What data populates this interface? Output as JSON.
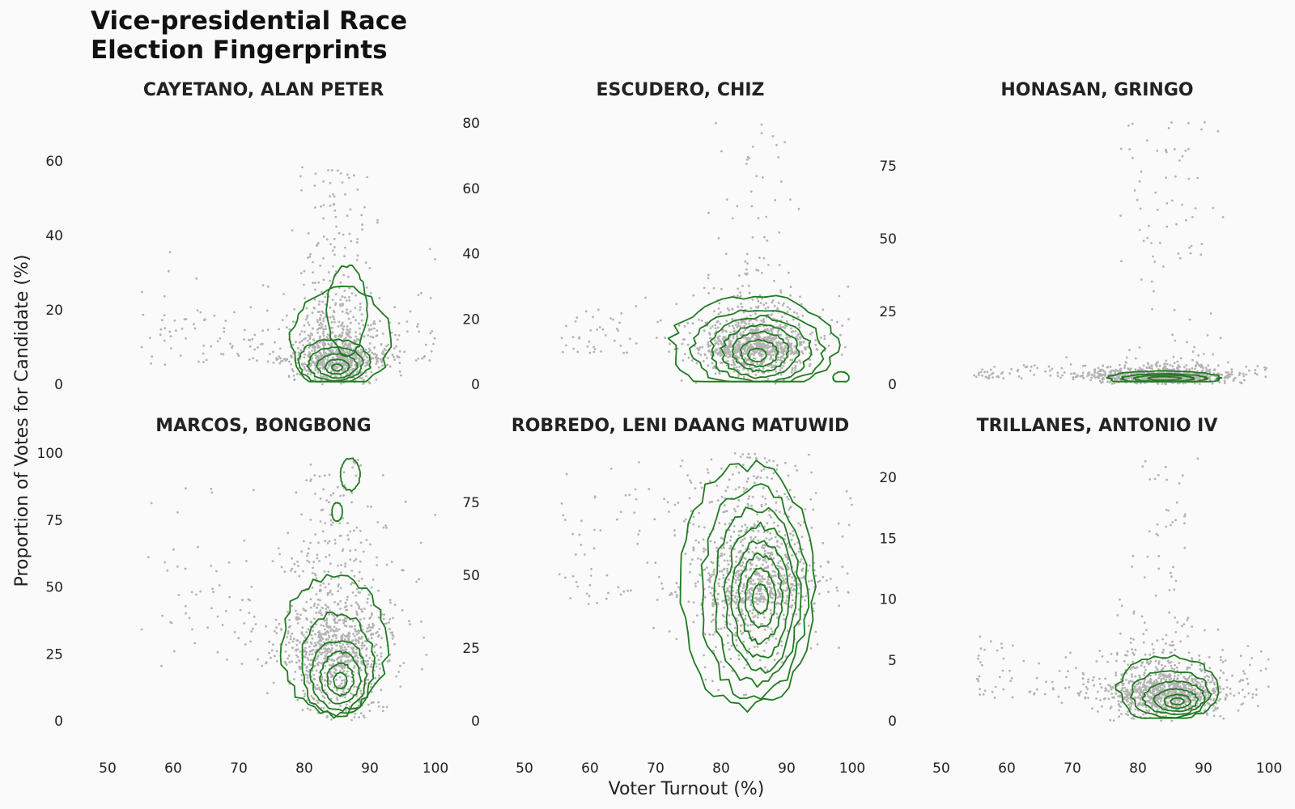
{
  "title_lines": [
    "Vice-presidential Race",
    "Election Fingerprints"
  ],
  "chart_data": {
    "type": "scatter",
    "title": "Vice-presidential Race Election Fingerprints",
    "xlabel": "Voter Turnout (%)",
    "ylabel": "Proportion of Votes for Candidate (%)",
    "grid": false,
    "legend": "none",
    "overlay": "2D density contours",
    "colors": {
      "points": "#b3b3b3",
      "contours": "#217a21",
      "background": "#fafafa"
    },
    "shared_xlim": [
      50,
      100
    ],
    "x_ticks": [
      50,
      60,
      70,
      80,
      90,
      100
    ],
    "panels": [
      {
        "name": "CAYETANO, ALAN PETER",
        "ylim": [
          0,
          72
        ],
        "y_ticks": [
          0,
          20,
          40,
          60
        ],
        "x_ticks": [],
        "cluster": {
          "x_mean": 85,
          "x_sd": 3.5,
          "y_center": 5,
          "y_spread": 8,
          "y_max": 60
        },
        "contours": [
          {
            "cx": 85.5,
            "cy": 12,
            "rx": 7.5,
            "ry": 14
          },
          {
            "cx": 86.5,
            "cy": 20,
            "rx": 3,
            "ry": 12
          },
          {
            "cx": 84.5,
            "cy": 6,
            "rx": 5.5,
            "ry": 6
          },
          {
            "cx": 84.7,
            "cy": 5.5,
            "rx": 4.2,
            "ry": 4.5
          },
          {
            "cx": 85,
            "cy": 5,
            "rx": 3,
            "ry": 3.2
          },
          {
            "cx": 85,
            "cy": 4.7,
            "rx": 1.8,
            "ry": 2
          },
          {
            "cx": 85,
            "cy": 4.5,
            "rx": 0.8,
            "ry": 0.9
          }
        ]
      },
      {
        "name": "ESCUDERO, CHIZ",
        "ylim": [
          0,
          82
        ],
        "y_ticks": [
          0,
          20,
          40,
          60,
          80
        ],
        "x_ticks": [],
        "cluster": {
          "x_mean": 85,
          "x_sd": 4,
          "y_center": 9,
          "y_spread": 7,
          "y_max": 80
        },
        "contours": [
          {
            "cx": 85,
            "cy": 12,
            "rx": 12.5,
            "ry": 15
          },
          {
            "cx": 85.5,
            "cy": 11,
            "rx": 10,
            "ry": 12
          },
          {
            "cx": 86,
            "cy": 10.5,
            "rx": 7.5,
            "ry": 10
          },
          {
            "cx": 86,
            "cy": 10,
            "rx": 5.8,
            "ry": 8
          },
          {
            "cx": 86,
            "cy": 10,
            "rx": 4.2,
            "ry": 6
          },
          {
            "cx": 85.8,
            "cy": 9.5,
            "rx": 2.8,
            "ry": 4
          },
          {
            "cx": 85.5,
            "cy": 9,
            "rx": 1.4,
            "ry": 2
          },
          {
            "cx": 98.3,
            "cy": 2,
            "rx": 1.2,
            "ry": 1.8
          }
        ]
      },
      {
        "name": "HONASAN, GRINGO",
        "ylim": [
          0,
          92
        ],
        "y_ticks": [
          0,
          25,
          50,
          75
        ],
        "x_ticks": [],
        "cluster": {
          "x_mean": 84,
          "x_sd": 5,
          "y_center": 2,
          "y_spread": 2,
          "y_max": 90
        },
        "contours": [
          {
            "cx": 84,
            "cy": 2.2,
            "rx": 8.5,
            "ry": 2.3
          },
          {
            "cx": 84,
            "cy": 2,
            "rx": 6.5,
            "ry": 1.6
          },
          {
            "cx": 84,
            "cy": 2,
            "rx": 4.5,
            "ry": 1.1
          },
          {
            "cx": 84,
            "cy": 2,
            "rx": 2.5,
            "ry": 0.6
          }
        ]
      },
      {
        "name": "MARCOS, BONGBONG",
        "ylim": [
          0,
          100
        ],
        "y_ticks": [
          0,
          25,
          50,
          75,
          100
        ],
        "x_ticks": [
          50,
          60,
          70,
          80,
          90,
          100
        ],
        "cluster": {
          "x_mean": 85,
          "x_sd": 4,
          "y_center": 20,
          "y_spread": 22,
          "y_max": 98
        },
        "contours": [
          {
            "cx": 84.5,
            "cy": 28,
            "rx": 8,
            "ry": 26
          },
          {
            "cx": 85,
            "cy": 21,
            "rx": 5.5,
            "ry": 19
          },
          {
            "cx": 85.3,
            "cy": 17,
            "rx": 4.2,
            "ry": 13
          },
          {
            "cx": 85.5,
            "cy": 16,
            "rx": 3,
            "ry": 9.5
          },
          {
            "cx": 85.5,
            "cy": 15.5,
            "rx": 2,
            "ry": 6
          },
          {
            "cx": 85.5,
            "cy": 15,
            "rx": 1,
            "ry": 3
          },
          {
            "cx": 87,
            "cy": 92,
            "rx": 1.5,
            "ry": 6
          },
          {
            "cx": 85,
            "cy": 78,
            "rx": 0.8,
            "ry": 3.5
          }
        ]
      },
      {
        "name": "ROBREDO, LENI DAANG MATUWID",
        "ylim": [
          0,
          92
        ],
        "y_ticks": [
          0,
          25,
          50,
          75
        ],
        "x_ticks": [
          50,
          60,
          70,
          80,
          90,
          100
        ],
        "cluster": {
          "x_mean": 85,
          "x_sd": 4.5,
          "y_center": 40,
          "y_spread": 22,
          "y_max": 92
        },
        "contours": [
          {
            "cx": 84,
            "cy": 46,
            "rx": 10,
            "ry": 42
          },
          {
            "cx": 85,
            "cy": 44,
            "rx": 8,
            "ry": 36
          },
          {
            "cx": 85.5,
            "cy": 43,
            "rx": 6.5,
            "ry": 30
          },
          {
            "cx": 86,
            "cy": 42,
            "rx": 5.3,
            "ry": 25
          },
          {
            "cx": 86,
            "cy": 42,
            "rx": 4.3,
            "ry": 20
          },
          {
            "cx": 86,
            "cy": 42,
            "rx": 3.3,
            "ry": 15
          },
          {
            "cx": 86,
            "cy": 42,
            "rx": 2.3,
            "ry": 10
          },
          {
            "cx": 86,
            "cy": 42,
            "rx": 1.2,
            "ry": 5
          }
        ]
      },
      {
        "name": "TRILLANES, ANTONIO IV",
        "ylim": [
          0,
          22
        ],
        "y_ticks": [
          0,
          5,
          10,
          15,
          20
        ],
        "x_ticks": [
          50,
          60,
          70,
          80,
          90,
          100
        ],
        "cluster": {
          "x_mean": 84,
          "x_sd": 4.5,
          "y_center": 1.8,
          "y_spread": 1.5,
          "y_max": 22
        },
        "contours": [
          {
            "cx": 84.5,
            "cy": 2.6,
            "rx": 7.5,
            "ry": 2.7
          },
          {
            "cx": 85,
            "cy": 2.2,
            "rx": 6,
            "ry": 1.9
          },
          {
            "cx": 85.5,
            "cy": 1.9,
            "rx": 4.6,
            "ry": 1.35
          },
          {
            "cx": 85.8,
            "cy": 1.7,
            "rx": 3.3,
            "ry": 0.9
          },
          {
            "cx": 86,
            "cy": 1.6,
            "rx": 2,
            "ry": 0.55
          },
          {
            "cx": 86,
            "cy": 1.6,
            "rx": 1,
            "ry": 0.28
          }
        ]
      }
    ]
  }
}
